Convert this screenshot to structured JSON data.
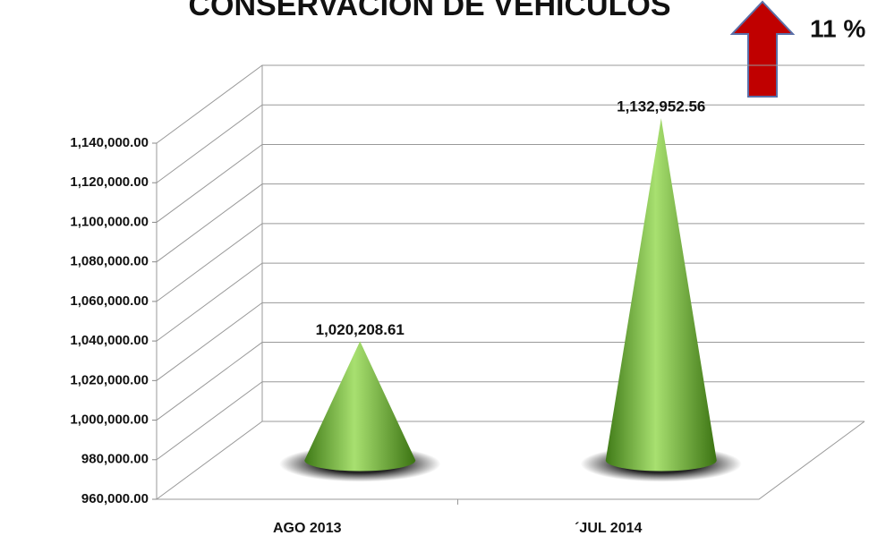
{
  "chart_data": {
    "type": "cone",
    "title": "CONSERVACION DE VEHICULOS",
    "annotation": "11 %",
    "categories": [
      "AGO 2013",
      "´JUL 2014"
    ],
    "values": [
      1020208.61,
      1132952.56
    ],
    "value_labels": [
      "1,020,208.61",
      "1,132,952.56"
    ],
    "color": "#6fb432",
    "ylim": [
      960000,
      1140000
    ],
    "yticks": [
      {
        "value": 960000,
        "label": "960,000.00"
      },
      {
        "value": 980000,
        "label": "980,000.00"
      },
      {
        "value": 1000000,
        "label": "1,000,000.00"
      },
      {
        "value": 1020000,
        "label": "1,020,000.00"
      },
      {
        "value": 1040000,
        "label": "1,040,000.00"
      },
      {
        "value": 1060000,
        "label": "1,060,000.00"
      },
      {
        "value": 1080000,
        "label": "1,080,000.00"
      },
      {
        "value": 1100000,
        "label": "1,100,000.00"
      },
      {
        "value": 1120000,
        "label": "1,120,000.00"
      },
      {
        "value": 1140000,
        "label": "1,140,000.00"
      }
    ],
    "grid": true
  }
}
